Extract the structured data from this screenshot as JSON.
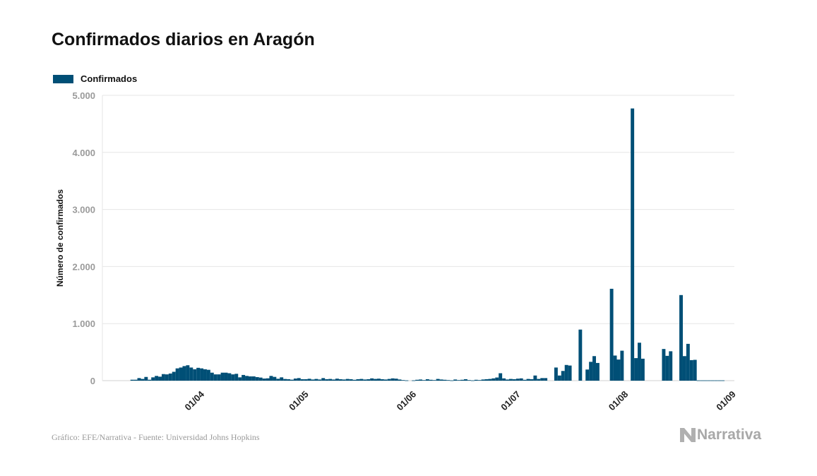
{
  "title": "Confirmados diarios en Aragón",
  "footer": "Gráfico: EFE/Narrativa - Fuente: Universidad Johns Hopkins",
  "logo_text": "Narrativa",
  "colors": {
    "bar": "#004f76",
    "grid": "#e6e6e6",
    "tick": "#9a9a9a"
  },
  "chart_data": {
    "type": "bar",
    "title": "Confirmados diarios en Aragón",
    "xlabel": "",
    "ylabel": "Número de confirmados",
    "legend": {
      "position": "top-left",
      "entries": [
        "Confirmados"
      ]
    },
    "ylim": [
      0,
      5000
    ],
    "y_ticks": [
      0,
      1000,
      2000,
      3000,
      4000,
      5000
    ],
    "y_tick_labels": [
      "0",
      "1.000",
      "2.000",
      "3.000",
      "4.000",
      "5.000"
    ],
    "x_ticks": [
      {
        "label": "01/04",
        "day": 31
      },
      {
        "label": "01/05",
        "day": 61
      },
      {
        "label": "01/06",
        "day": 92
      },
      {
        "label": "01/07",
        "day": 122
      },
      {
        "label": "01/08",
        "day": 153
      },
      {
        "label": "01/09",
        "day": 184
      }
    ],
    "x_unit": "days since 01/03",
    "start_day": 10,
    "series": [
      {
        "name": "Confirmados",
        "values": [
          16,
          16,
          45,
          30,
          65,
          16,
          58,
          83,
          70,
          115,
          110,
          125,
          155,
          215,
          230,
          255,
          270,
          230,
          200,
          225,
          215,
          200,
          190,
          140,
          110,
          110,
          140,
          140,
          130,
          110,
          120,
          58,
          100,
          83,
          75,
          75,
          62,
          54,
          37,
          41,
          83,
          66,
          33,
          58,
          29,
          25,
          17,
          37,
          45,
          25,
          25,
          33,
          20,
          30,
          20,
          45,
          25,
          30,
          20,
          35,
          25,
          20,
          30,
          25,
          15,
          25,
          30,
          20,
          25,
          40,
          30,
          35,
          25,
          20,
          30,
          40,
          35,
          20,
          10,
          5,
          0,
          5,
          15,
          20,
          10,
          25,
          15,
          10,
          30,
          20,
          15,
          10,
          5,
          20,
          10,
          15,
          25,
          10,
          5,
          15,
          10,
          20,
          25,
          30,
          40,
          55,
          130,
          40,
          20,
          30,
          25,
          35,
          40,
          15,
          30,
          25,
          90,
          30,
          45,
          45,
          0,
          0,
          230,
          90,
          170,
          275,
          265,
          0,
          0,
          895,
          0,
          195,
          330,
          430,
          310,
          0,
          0,
          0,
          1610,
          440,
          370,
          525,
          0,
          0,
          4770,
          395,
          665,
          385,
          0,
          0,
          0,
          0,
          0,
          555,
          435,
          515,
          0,
          0,
          1500,
          430,
          645,
          360,
          365,
          5,
          5,
          5,
          5,
          5,
          5,
          5,
          5
        ]
      }
    ]
  }
}
